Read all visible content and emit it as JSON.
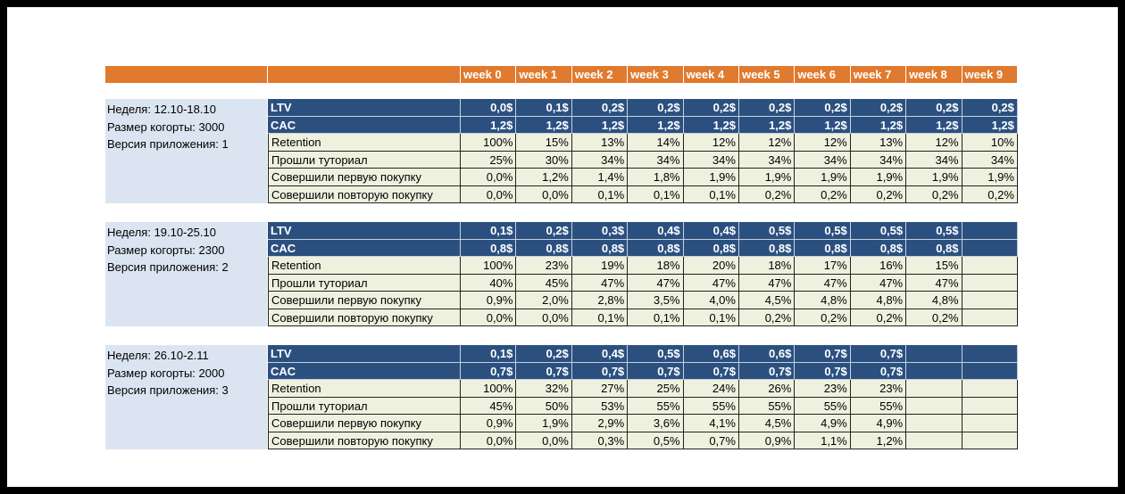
{
  "weeks": [
    "week 0",
    "week 1",
    "week 2",
    "week 3",
    "week 4",
    "week 5",
    "week 6",
    "week 7",
    "week 8",
    "week 9"
  ],
  "cohorts": [
    {
      "week_label": "Неделя: 12.10-18.10",
      "size_label": "Размер когорты: 3000",
      "version_label": "Версия приложения: 1",
      "rows": [
        {
          "label": "LTV",
          "style": "dark",
          "values": [
            "0,0$",
            "0,1$",
            "0,2$",
            "0,2$",
            "0,2$",
            "0,2$",
            "0,2$",
            "0,2$",
            "0,2$",
            "0,2$"
          ]
        },
        {
          "label": "CAC",
          "style": "dark",
          "values": [
            "1,2$",
            "1,2$",
            "1,2$",
            "1,2$",
            "1,2$",
            "1,2$",
            "1,2$",
            "1,2$",
            "1,2$",
            "1,2$"
          ]
        },
        {
          "label": "Retention",
          "style": "light",
          "values": [
            "100%",
            "15%",
            "13%",
            "14%",
            "12%",
            "12%",
            "12%",
            "13%",
            "12%",
            "10%"
          ]
        },
        {
          "label": "Прошли туториал",
          "style": "light",
          "values": [
            "25%",
            "30%",
            "34%",
            "34%",
            "34%",
            "34%",
            "34%",
            "34%",
            "34%",
            "34%"
          ]
        },
        {
          "label": "Совершили первую покупку",
          "style": "light",
          "values": [
            "0,0%",
            "1,2%",
            "1,4%",
            "1,8%",
            "1,9%",
            "1,9%",
            "1,9%",
            "1,9%",
            "1,9%",
            "1,9%"
          ]
        },
        {
          "label": "Совершили повторую покупку",
          "style": "light",
          "values": [
            "0,0%",
            "0,0%",
            "0,1%",
            "0,1%",
            "0,1%",
            "0,2%",
            "0,2%",
            "0,2%",
            "0,2%",
            "0,2%"
          ]
        }
      ]
    },
    {
      "week_label": "Неделя: 19.10-25.10",
      "size_label": "Размер когорты: 2300",
      "version_label": "Версия приложения: 2",
      "rows": [
        {
          "label": "LTV",
          "style": "dark",
          "values": [
            "0,1$",
            "0,2$",
            "0,3$",
            "0,4$",
            "0,4$",
            "0,5$",
            "0,5$",
            "0,5$",
            "0,5$",
            ""
          ]
        },
        {
          "label": "CAC",
          "style": "dark",
          "values": [
            "0,8$",
            "0,8$",
            "0,8$",
            "0,8$",
            "0,8$",
            "0,8$",
            "0,8$",
            "0,8$",
            "0,8$",
            ""
          ]
        },
        {
          "label": "Retention",
          "style": "light",
          "values": [
            "100%",
            "23%",
            "19%",
            "18%",
            "20%",
            "18%",
            "17%",
            "16%",
            "15%",
            ""
          ]
        },
        {
          "label": "Прошли туториал",
          "style": "light",
          "values": [
            "40%",
            "45%",
            "47%",
            "47%",
            "47%",
            "47%",
            "47%",
            "47%",
            "47%",
            ""
          ]
        },
        {
          "label": "Совершили первую покупку",
          "style": "light",
          "values": [
            "0,9%",
            "2,0%",
            "2,8%",
            "3,5%",
            "4,0%",
            "4,5%",
            "4,8%",
            "4,8%",
            "4,8%",
            ""
          ]
        },
        {
          "label": "Совершили повторую покупку",
          "style": "light",
          "values": [
            "0,0%",
            "0,0%",
            "0,1%",
            "0,1%",
            "0,1%",
            "0,2%",
            "0,2%",
            "0,2%",
            "0,2%",
            ""
          ]
        }
      ]
    },
    {
      "week_label": "Неделя: 26.10-2.11",
      "size_label": "Размер когорты: 2000",
      "version_label": "Версия приложения: 3",
      "rows": [
        {
          "label": "LTV",
          "style": "dark",
          "values": [
            "0,1$",
            "0,2$",
            "0,4$",
            "0,5$",
            "0,6$",
            "0,6$",
            "0,7$",
            "0,7$",
            "",
            ""
          ]
        },
        {
          "label": "CAC",
          "style": "dark",
          "values": [
            "0,7$",
            "0,7$",
            "0,7$",
            "0,7$",
            "0,7$",
            "0,7$",
            "0,7$",
            "0,7$",
            "",
            ""
          ]
        },
        {
          "label": "Retention",
          "style": "light",
          "values": [
            "100%",
            "32%",
            "27%",
            "25%",
            "24%",
            "26%",
            "23%",
            "23%",
            "",
            ""
          ]
        },
        {
          "label": "Прошли туториал",
          "style": "light",
          "values": [
            "45%",
            "50%",
            "53%",
            "55%",
            "55%",
            "55%",
            "55%",
            "55%",
            "",
            ""
          ]
        },
        {
          "label": "Совершили первую покупку",
          "style": "light",
          "values": [
            "0,9%",
            "1,9%",
            "2,9%",
            "3,6%",
            "4,1%",
            "4,5%",
            "4,9%",
            "4,9%",
            "",
            ""
          ]
        },
        {
          "label": "Совершили повторую покупку",
          "style": "light",
          "values": [
            "0,0%",
            "0,0%",
            "0,3%",
            "0,5%",
            "0,7%",
            "0,9%",
            "1,1%",
            "1,2%",
            "",
            ""
          ]
        }
      ]
    }
  ]
}
